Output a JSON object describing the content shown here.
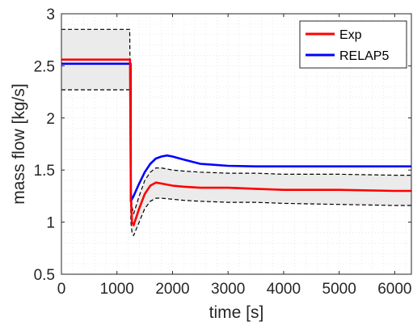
{
  "chart_data": {
    "type": "line",
    "xlabel": "time [s]",
    "ylabel": "mass flow [kg/s]",
    "xlim": [
      0,
      6300
    ],
    "ylim": [
      0.5,
      3
    ],
    "xticks": [
      0,
      1000,
      2000,
      3000,
      4000,
      5000,
      6000
    ],
    "yticks": [
      0.5,
      1,
      1.5,
      2,
      2.5,
      3
    ],
    "grid": "minor-dotted",
    "legend_position": "top-right",
    "series": [
      {
        "name": "Exp",
        "color": "#ff0000",
        "x": [
          0,
          1200,
          1235,
          1250,
          1270,
          1300,
          1400,
          1500,
          1600,
          1700,
          1800,
          2000,
          2200,
          2500,
          3000,
          3500,
          4000,
          5000,
          6000,
          6300
        ],
        "y": [
          2.56,
          2.56,
          2.56,
          1.25,
          1.0,
          0.97,
          1.13,
          1.27,
          1.35,
          1.38,
          1.37,
          1.35,
          1.34,
          1.33,
          1.33,
          1.32,
          1.31,
          1.31,
          1.3,
          1.3
        ]
      },
      {
        "name": "RELAP5",
        "color": "#0000ff",
        "x": [
          0,
          1240,
          1245,
          1250,
          1300,
          1400,
          1500,
          1600,
          1700,
          1800,
          1900,
          2000,
          2200,
          2500,
          3000,
          3500,
          4000,
          5000,
          6000,
          6300
        ],
        "y": [
          2.52,
          2.52,
          2.52,
          1.2,
          1.25,
          1.37,
          1.48,
          1.56,
          1.61,
          1.63,
          1.64,
          1.63,
          1.6,
          1.56,
          1.54,
          1.535,
          1.535,
          1.535,
          1.535,
          1.535
        ]
      },
      {
        "name": "",
        "role": "uncertainty-upper",
        "color": "#000000",
        "x": [
          0,
          1200,
          1230,
          1250,
          1270,
          1300,
          1400,
          1500,
          1600,
          1700,
          1800,
          2000,
          2200,
          2500,
          3000,
          3500,
          4000,
          5000,
          6000,
          6300
        ],
        "y": [
          2.85,
          2.85,
          2.85,
          1.4,
          1.15,
          1.08,
          1.25,
          1.4,
          1.48,
          1.52,
          1.52,
          1.5,
          1.49,
          1.48,
          1.47,
          1.47,
          1.46,
          1.46,
          1.45,
          1.45
        ]
      },
      {
        "name": "",
        "role": "uncertainty-lower",
        "color": "#000000",
        "x": [
          0,
          1200,
          1230,
          1250,
          1270,
          1300,
          1400,
          1500,
          1600,
          1700,
          1800,
          2000,
          2200,
          2500,
          3000,
          3500,
          4000,
          5000,
          6000,
          6300
        ],
        "y": [
          2.27,
          2.27,
          2.27,
          1.0,
          0.9,
          0.87,
          1.0,
          1.13,
          1.2,
          1.23,
          1.23,
          1.22,
          1.21,
          1.2,
          1.19,
          1.19,
          1.18,
          1.17,
          1.16,
          1.16
        ]
      }
    ]
  },
  "colors": {
    "band_fill": "#ebebeb",
    "axis": "#262626",
    "grid": "#dcdcdc"
  }
}
